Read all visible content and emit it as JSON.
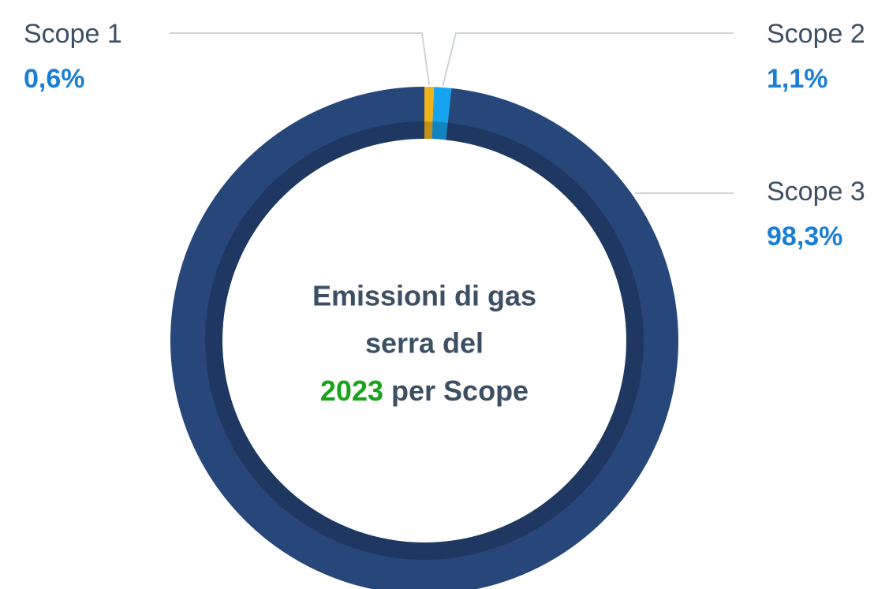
{
  "chart_data": {
    "type": "pie",
    "donut": true,
    "categories": [
      "Scope 1",
      "Scope 2",
      "Scope 3"
    ],
    "values": [
      0.6,
      1.1,
      98.3
    ],
    "value_labels": [
      "0,6%",
      "1,1%",
      "98,3%"
    ],
    "colors": [
      "#f0b31a",
      "#16a4f0",
      "#27477a"
    ],
    "center_text": {
      "line1": "Emissioni di gas",
      "line2": "serra del",
      "year": "2023",
      "line3": "per Scope"
    }
  }
}
